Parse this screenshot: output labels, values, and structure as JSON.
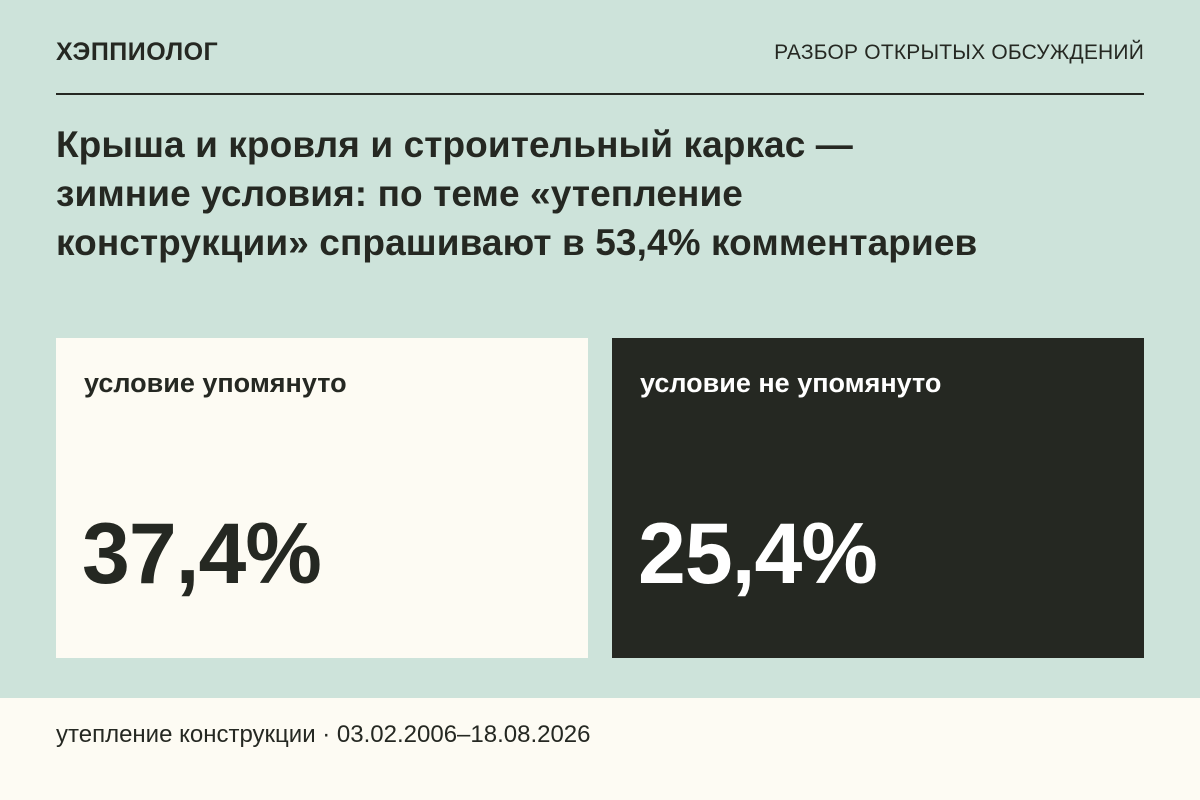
{
  "header": {
    "brand": "ХЭППИОЛОГ",
    "section": "РАЗБОР ОТКРЫТЫХ ОБСУЖДЕНИЙ"
  },
  "headline": {
    "lines": [
      "Крыша и кровля и строительный каркас —",
      "зимние условия: по теме «утепление",
      "конструкции» спрашивают в 53,4% комментариев"
    ]
  },
  "cards": [
    {
      "label": "условие упомянуто",
      "value": "37,4%",
      "bg": "#fdfbf3"
    },
    {
      "label": "условие не упомянуто",
      "value": "25,4%",
      "bg": "#252822"
    }
  ],
  "footer": {
    "text": "утепление конструкции · 03.02.2006–18.08.2026"
  },
  "colors": {
    "background": "#cde3da",
    "dark": "#252822",
    "light": "#fdfbf3"
  }
}
